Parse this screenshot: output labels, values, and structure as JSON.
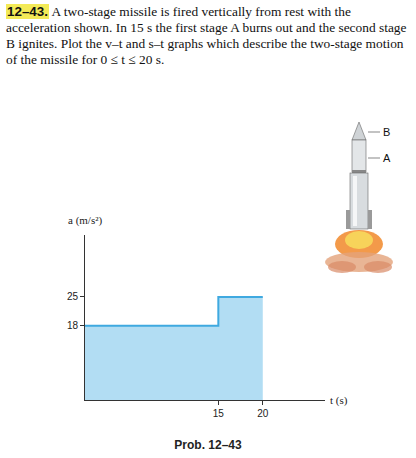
{
  "problem": {
    "number": "12–43.",
    "text": "A two-stage missile is fired vertically from rest with the acceleration shown. In 15 s the first stage A burns out and the second stage B ignites. Plot the v–t and s–t graphs which describe the two-stage motion of the missile for 0 ≤ t ≤ 20 s."
  },
  "figure": {
    "upper_stage_label": "B",
    "lower_stage_label": "A",
    "caption": "Prob. 12–43"
  },
  "chart_data": {
    "type": "area",
    "line_style": "step",
    "color": "#3fa9e0",
    "xlabel": "t (s)",
    "ylabel": "a (m/s²)",
    "x": [
      0,
      15,
      20
    ],
    "values": [
      18,
      25,
      25
    ],
    "xlim": [
      0,
      27
    ],
    "ylim": [
      0,
      40
    ],
    "xticks": [
      15,
      20
    ],
    "yticks": [
      18,
      25
    ],
    "grid": false
  }
}
